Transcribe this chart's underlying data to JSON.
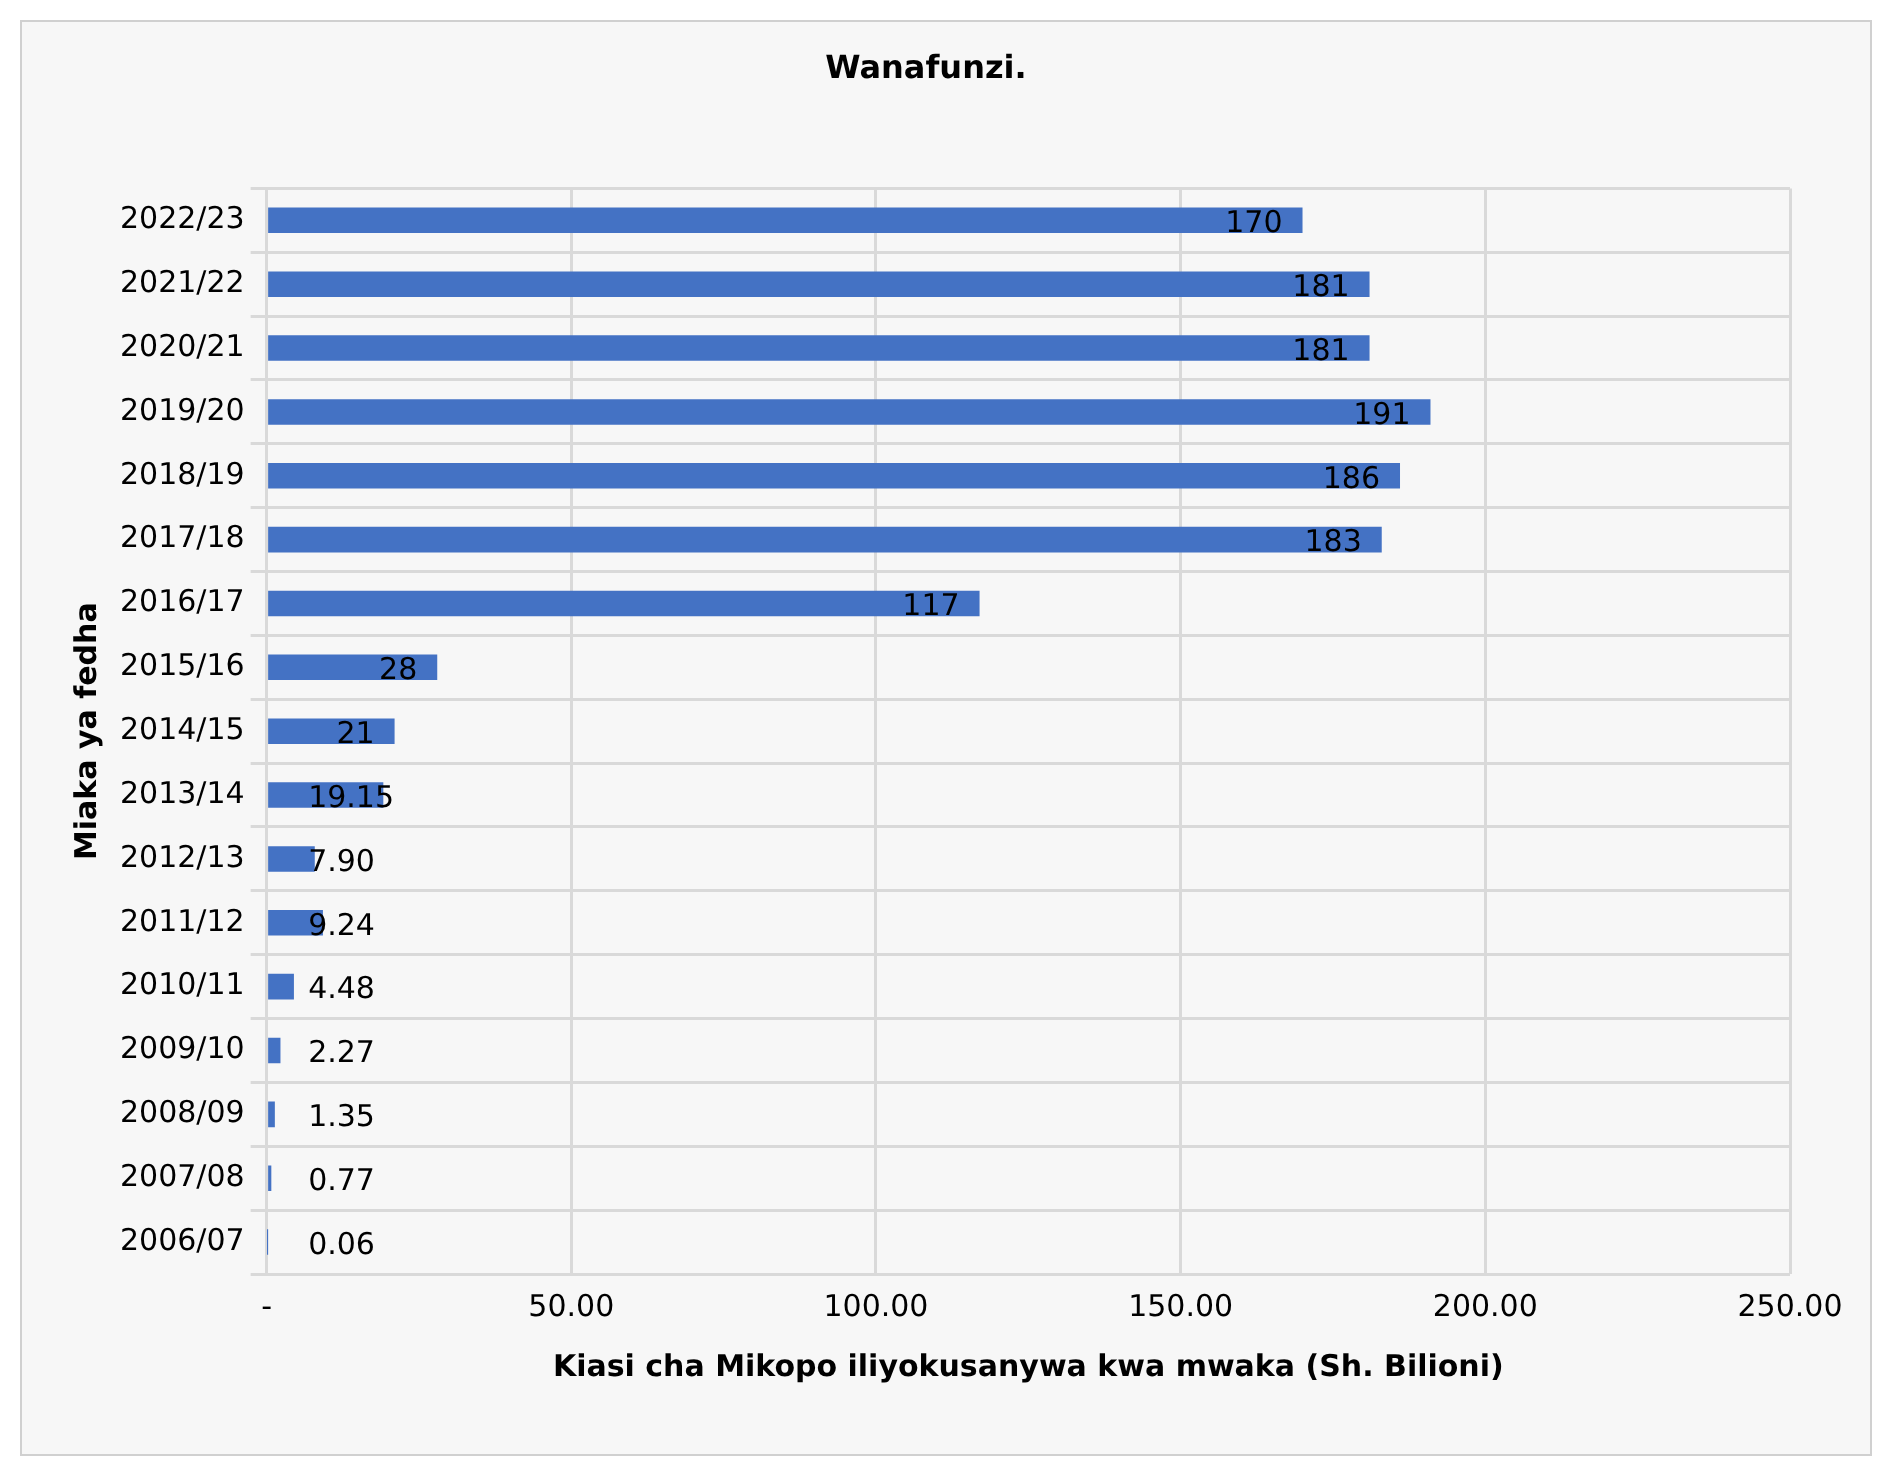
{
  "chart_data": {
    "type": "bar",
    "orientation": "horizontal",
    "title": "Wanafunzi.",
    "xlabel": "Kiasi cha Mikopo iliyokusanywa kwa mwaka (Sh. Bilioni)",
    "ylabel": "Miaka ya fedha",
    "categories": [
      "2022/23",
      "2021/22",
      "2020/21",
      "2019/20",
      "2018/19",
      "2017/18",
      "2016/17",
      "2015/16",
      "2014/15",
      "2013/14",
      "2012/13",
      "2011/12",
      "2010/11",
      "2009/10",
      "2008/09",
      "2007/08",
      "2006/07"
    ],
    "values": [
      170,
      181,
      181,
      191,
      186,
      183,
      117,
      28,
      21,
      19.15,
      7.9,
      9.24,
      4.48,
      2.27,
      1.35,
      0.77,
      0.06
    ],
    "value_labels": [
      "170",
      "181",
      "181",
      "191",
      "186",
      "183",
      "117",
      "28",
      "21",
      "19.15",
      "7.90",
      "9.24",
      "4.48",
      "2.27",
      "1.35",
      "0.77",
      "0.06"
    ],
    "color": "#4472c4",
    "xlim": [
      0,
      250
    ],
    "xticks": [
      {
        "value": 0,
        "label": "-"
      },
      {
        "value": 50,
        "label": "50.00"
      },
      {
        "value": 100,
        "label": "100.00"
      },
      {
        "value": 150,
        "label": "150.00"
      },
      {
        "value": 200,
        "label": "200.00"
      },
      {
        "value": 250,
        "label": "250.00"
      }
    ],
    "grid": true,
    "legend": false
  }
}
